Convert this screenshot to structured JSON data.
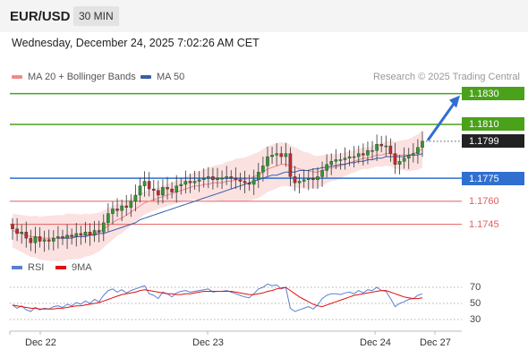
{
  "header": {
    "symbol": "EUR/USD",
    "timeframe": "30 MIN"
  },
  "datetime": "Wednesday, December 24, 2025 7:02:26 AM CET",
  "legend": {
    "ma20": {
      "label": "MA 20 + Bollinger Bands",
      "color": "#f08a8a"
    },
    "ma50": {
      "label": "MA 50",
      "color": "#3a5ea8"
    }
  },
  "credit": "Research © 2025 Trading Central",
  "levels": [
    {
      "label": "1.1830",
      "value": 1.183,
      "style": "box",
      "color": "#4aa11a"
    },
    {
      "label": "1.1810",
      "value": 1.181,
      "style": "box",
      "color": "#4aa11a"
    },
    {
      "label": "1.1799",
      "value": 1.1799,
      "style": "box",
      "color": "#222222"
    },
    {
      "label": "1.1775",
      "value": 1.1775,
      "style": "box",
      "color": "#2f6fd0"
    },
    {
      "label": "1.1760",
      "value": 1.176,
      "style": "text",
      "color": "#e06060"
    },
    {
      "label": "1.1745",
      "value": 1.1745,
      "style": "text",
      "color": "#e06060"
    }
  ],
  "rsi_legend": {
    "rsi": {
      "label": "RSI",
      "color": "#5b7fd0"
    },
    "ma9": {
      "label": "9MA",
      "color": "#e01010"
    }
  },
  "rsi_ticks": [
    "70",
    "50",
    "30"
  ],
  "x_labels": [
    "Dec 22",
    "Dec 23",
    "Dec 24",
    "Dec 27"
  ],
  "chart_data": {
    "type": "candlestick",
    "price_range": [
      1.1725,
      1.1835
    ],
    "rsi_range": [
      20,
      80
    ],
    "candle_colors": {
      "up": "#2e9a2e",
      "down": "#c22a2a"
    },
    "target_arrow": {
      "from": 1.1799,
      "to": 1.183,
      "color": "#2f6fd0"
    },
    "close_series": [
      1.1742,
      1.1739,
      1.174,
      1.1736,
      1.1733,
      1.1737,
      1.1734,
      1.1735,
      1.1734,
      1.1736,
      1.1737,
      1.1736,
      1.1738,
      1.1737,
      1.1739,
      1.1738,
      1.174,
      1.1738,
      1.1741,
      1.174,
      1.1746,
      1.1752,
      1.1755,
      1.1754,
      1.1757,
      1.1756,
      1.176,
      1.1764,
      1.177,
      1.1773,
      1.1768,
      1.1767,
      1.1764,
      1.1769,
      1.1768,
      1.1766,
      1.177,
      1.1771,
      1.1773,
      1.1772,
      1.1773,
      1.1774,
      1.1775,
      1.1776,
      1.1774,
      1.1775,
      1.1775,
      1.1776,
      1.1775,
      1.1774,
      1.1773,
      1.1772,
      1.1771,
      1.1774,
      1.1779,
      1.1783,
      1.1789,
      1.179,
      1.1791,
      1.1789,
      1.1791,
      1.1776,
      1.1772,
      1.1773,
      1.1774,
      1.1775,
      1.1774,
      1.1776,
      1.178,
      1.1784,
      1.1786,
      1.1787,
      1.1787,
      1.1788,
      1.1789,
      1.1789,
      1.1791,
      1.179,
      1.1793,
      1.1793,
      1.1797,
      1.1796,
      1.1796,
      1.1791,
      1.1784,
      1.1786,
      1.1788,
      1.179,
      1.1791,
      1.1795,
      1.1799
    ],
    "ma20_series": [
      1.1741,
      1.174,
      1.1739,
      1.1738,
      1.1737,
      1.1737,
      1.1736,
      1.1736,
      1.1736,
      1.1736,
      1.1736,
      1.1736,
      1.1737,
      1.1737,
      1.1737,
      1.1737,
      1.1738,
      1.1738,
      1.1739,
      1.174,
      1.1742,
      1.1744,
      1.1746,
      1.1748,
      1.1749,
      1.1751,
      1.1753,
      1.1755,
      1.1757,
      1.1759,
      1.176,
      1.1761,
      1.1762,
      1.1763,
      1.1764,
      1.1765,
      1.1766,
      1.1767,
      1.1768,
      1.1769,
      1.177,
      1.177,
      1.1771,
      1.1771,
      1.1772,
      1.1772,
      1.1772,
      1.1773,
      1.1773,
      1.1774,
      1.1774,
      1.1774,
      1.1775,
      1.1776,
      1.1777,
      1.1779,
      1.1781,
      1.1782,
      1.1783,
      1.1784,
      1.1784,
      1.1783,
      1.1782,
      1.1781,
      1.178,
      1.178,
      1.1779,
      1.1779,
      1.178,
      1.1781,
      1.1782,
      1.1782,
      1.1783,
      1.1784,
      1.1785,
      1.1786,
      1.1787,
      1.1788,
      1.1788,
      1.1789,
      1.179,
      1.179,
      1.1791,
      1.1791,
      1.179,
      1.179,
      1.179,
      1.179,
      1.1791,
      1.1792,
      1.1794
    ],
    "ma50_series": [
      null,
      null,
      null,
      null,
      null,
      null,
      null,
      null,
      null,
      null,
      1.1736,
      1.1736,
      1.1736,
      1.1736,
      1.1737,
      1.1737,
      1.1737,
      1.1738,
      1.1738,
      1.1739,
      1.1739,
      1.174,
      1.1741,
      1.1742,
      1.1743,
      1.1744,
      1.1745,
      1.1746,
      1.1748,
      1.1749,
      1.175,
      1.1751,
      1.1752,
      1.1753,
      1.1754,
      1.1755,
      1.1756,
      1.1757,
      1.1758,
      1.1759,
      1.176,
      1.1761,
      1.1762,
      1.1763,
      1.1764,
      1.1765,
      1.1766,
      1.1767,
      1.1768,
      1.1769,
      1.177,
      1.1771,
      1.1772,
      1.1773,
      1.1774,
      1.1775,
      1.1776,
      1.1777,
      1.1777,
      1.1778,
      1.1779,
      1.1779,
      1.1779,
      1.178,
      1.178,
      1.178,
      1.1781,
      1.1781,
      1.1782,
      1.1782,
      1.1783,
      1.1783,
      1.1784,
      1.1784,
      1.1785,
      1.1785,
      1.1786,
      1.1786,
      1.1787,
      1.1787,
      1.1788,
      1.1788,
      1.1789,
      1.1789,
      1.1789,
      1.1789,
      1.1789,
      1.179,
      1.179,
      1.179,
      1.1791
    ],
    "rsi_series": [
      48,
      44,
      47,
      42,
      40,
      45,
      42,
      44,
      43,
      46,
      47,
      45,
      49,
      47,
      51,
      49,
      53,
      50,
      55,
      52,
      60,
      66,
      68,
      64,
      67,
      63,
      66,
      68,
      70,
      72,
      62,
      60,
      56,
      64,
      62,
      58,
      63,
      65,
      66,
      64,
      65,
      66,
      67,
      68,
      64,
      65,
      65,
      66,
      64,
      62,
      60,
      58,
      57,
      62,
      68,
      70,
      74,
      72,
      73,
      68,
      70,
      44,
      40,
      42,
      44,
      46,
      43,
      48,
      56,
      60,
      62,
      62,
      61,
      63,
      64,
      62,
      66,
      63,
      67,
      66,
      70,
      66,
      65,
      56,
      46,
      50,
      52,
      55,
      56,
      60,
      62
    ],
    "ma9_series": [
      48,
      47,
      46,
      45,
      44,
      44,
      43,
      43,
      43,
      43,
      44,
      44,
      45,
      46,
      47,
      47,
      48,
      49,
      50,
      51,
      53,
      55,
      57,
      59,
      61,
      62,
      63,
      64,
      66,
      67,
      66,
      65,
      64,
      63,
      62,
      62,
      61,
      61,
      62,
      62,
      63,
      64,
      65,
      65,
      65,
      65,
      65,
      65,
      65,
      64,
      63,
      62,
      61,
      61,
      62,
      63,
      65,
      66,
      68,
      69,
      70,
      66,
      62,
      58,
      55,
      52,
      49,
      47,
      46,
      48,
      50,
      52,
      54,
      56,
      58,
      60,
      61,
      62,
      63,
      64,
      65,
      66,
      66,
      64,
      62,
      60,
      58,
      57,
      56,
      56,
      57
    ]
  }
}
